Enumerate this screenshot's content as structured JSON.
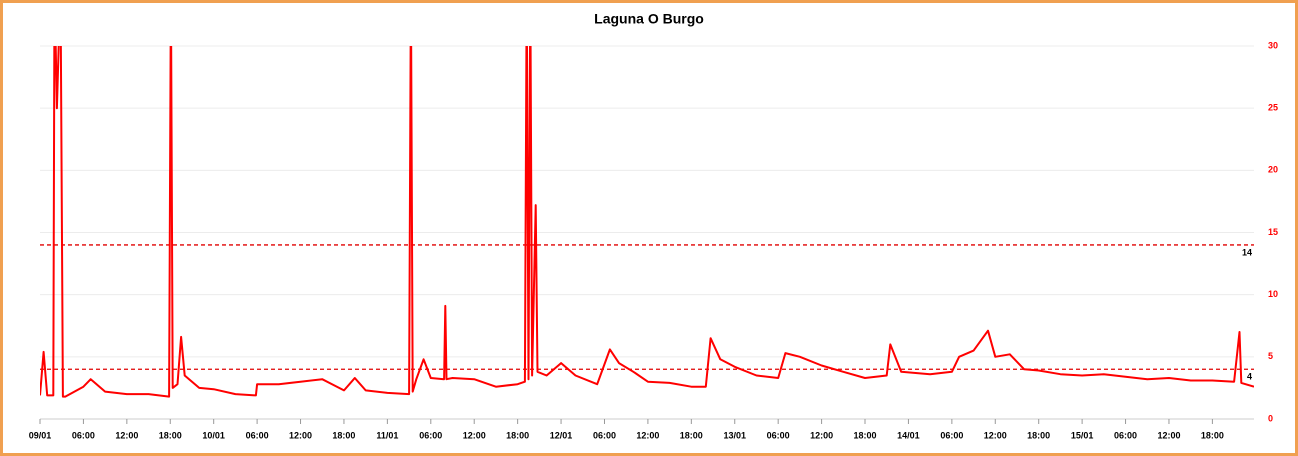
{
  "chart_data": {
    "type": "line",
    "title": "Laguna O Burgo",
    "color": "#ff0000",
    "threshold_color": "#e00000",
    "grid": true,
    "x": [
      "09/01 00:00",
      "09/01 00:30",
      "09/01 01:00",
      "09/01 01:50",
      "09/01 02:00",
      "09/01 02:20",
      "09/01 02:50",
      "09/01 03:10",
      "09/01 03:30",
      "09/01 06:00",
      "09/01 07:00",
      "09/01 09:00",
      "09/01 12:00",
      "09/01 15:00",
      "09/01 17:50",
      "09/01 18:05",
      "09/01 18:20",
      "09/01 19:00",
      "09/01 19:30",
      "09/01 20:00",
      "09/01 22:00",
      "10/01 00:00",
      "10/01 03:00",
      "10/01 05:50",
      "10/01 06:00",
      "10/01 09:00",
      "10/01 12:00",
      "10/01 15:00",
      "10/01 18:00",
      "10/01 19:30",
      "10/01 21:00",
      "11/01 00:00",
      "11/01 03:00",
      "11/01 03:15",
      "11/01 03:30",
      "11/01 04:00",
      "11/01 05:00",
      "11/01 06:00",
      "11/01 07:50",
      "11/01 08:00",
      "11/01 08:10",
      "11/01 09:00",
      "11/01 12:00",
      "11/01 15:00",
      "11/01 18:00",
      "11/01 19:00",
      "11/01 19:15",
      "11/01 19:30",
      "11/01 19:45",
      "11/01 20:00",
      "11/01 20:30",
      "11/01 20:45",
      "11/01 22:00",
      "12/01 00:00",
      "12/01 02:00",
      "12/01 05:00",
      "12/01 06:45",
      "12/01 08:00",
      "12/01 10:00",
      "12/01 12:00",
      "12/01 15:00",
      "12/01 18:00",
      "12/01 20:00",
      "12/01 20:40",
      "12/01 22:00",
      "13/01 00:00",
      "13/01 03:00",
      "13/01 06:00",
      "13/01 07:00",
      "13/01 09:00",
      "13/01 12:00",
      "13/01 15:00",
      "13/01 18:00",
      "13/01 21:00",
      "13/01 21:30",
      "13/01 23:00",
      "14/01 03:00",
      "14/01 06:00",
      "14/01 07:00",
      "14/01 09:00",
      "14/01 11:00",
      "14/01 12:00",
      "14/01 14:00",
      "14/01 16:00",
      "14/01 18:00",
      "14/01 21:00",
      "15/01 00:00",
      "15/01 03:00",
      "15/01 06:00",
      "15/01 09:00",
      "15/01 12:00",
      "15/01 15:00",
      "15/01 18:00",
      "15/01 21:00",
      "15/01 21:45",
      "15/01 22:00",
      "15/01 23:45"
    ],
    "values": [
      1.9,
      5.4,
      1.9,
      1.9,
      35,
      25,
      35,
      1.8,
      1.8,
      2.6,
      3.2,
      2.2,
      2.0,
      2.0,
      1.8,
      35,
      2.5,
      2.8,
      6.6,
      3.5,
      2.5,
      2.4,
      2.0,
      1.9,
      2.8,
      2.8,
      3.0,
      3.2,
      2.3,
      3.3,
      2.3,
      2.1,
      2.0,
      35,
      2.2,
      3.2,
      4.8,
      3.3,
      3.2,
      9.1,
      3.2,
      3.3,
      3.2,
      2.6,
      2.8,
      3.0,
      35,
      3.2,
      35,
      3.5,
      17.2,
      3.8,
      3.5,
      4.5,
      3.5,
      2.8,
      5.6,
      4.5,
      3.8,
      3.0,
      2.9,
      2.6,
      2.6,
      6.5,
      4.8,
      4.2,
      3.5,
      3.3,
      5.3,
      5.0,
      4.3,
      3.8,
      3.3,
      3.5,
      6.0,
      3.8,
      3.6,
      3.8,
      5.0,
      5.5,
      7.1,
      5.0,
      5.2,
      4.0,
      3.9,
      3.6,
      3.5,
      3.6,
      3.4,
      3.2,
      3.3,
      3.1,
      3.1,
      3.0,
      7.0,
      2.9,
      2.6
    ],
    "xlim": [
      "09/01 00:00",
      "15/01 23:45"
    ],
    "xticks": [
      {
        "value": "09/01 00:00",
        "label": "09/01"
      },
      {
        "value": "09/01 06:00",
        "label": "06:00"
      },
      {
        "value": "09/01 12:00",
        "label": "12:00"
      },
      {
        "value": "09/01 18:00",
        "label": "18:00"
      },
      {
        "value": "10/01 00:00",
        "label": "10/01"
      },
      {
        "value": "10/01 06:00",
        "label": "06:00"
      },
      {
        "value": "10/01 12:00",
        "label": "12:00"
      },
      {
        "value": "10/01 18:00",
        "label": "18:00"
      },
      {
        "value": "11/01 00:00",
        "label": "11/01"
      },
      {
        "value": "11/01 06:00",
        "label": "06:00"
      },
      {
        "value": "11/01 12:00",
        "label": "12:00"
      },
      {
        "value": "11/01 18:00",
        "label": "18:00"
      },
      {
        "value": "12/01 00:00",
        "label": "12/01"
      },
      {
        "value": "12/01 06:00",
        "label": "06:00"
      },
      {
        "value": "12/01 12:00",
        "label": "12:00"
      },
      {
        "value": "12/01 18:00",
        "label": "18:00"
      },
      {
        "value": "13/01 00:00",
        "label": "13/01"
      },
      {
        "value": "13/01 06:00",
        "label": "06:00"
      },
      {
        "value": "13/01 12:00",
        "label": "12:00"
      },
      {
        "value": "13/01 18:00",
        "label": "18:00"
      },
      {
        "value": "14/01 00:00",
        "label": "14/01"
      },
      {
        "value": "14/01 06:00",
        "label": "06:00"
      },
      {
        "value": "14/01 12:00",
        "label": "12:00"
      },
      {
        "value": "14/01 18:00",
        "label": "18:00"
      },
      {
        "value": "15/01 00:00",
        "label": "15/01"
      },
      {
        "value": "15/01 06:00",
        "label": "06:00"
      },
      {
        "value": "15/01 12:00",
        "label": "12:00"
      },
      {
        "value": "15/01 18:00",
        "label": "18:00"
      }
    ],
    "ylim": [
      0,
      30
    ],
    "yticks": [
      0,
      5,
      10,
      15,
      20,
      25,
      30
    ],
    "thresholds": [
      14,
      4
    ]
  }
}
